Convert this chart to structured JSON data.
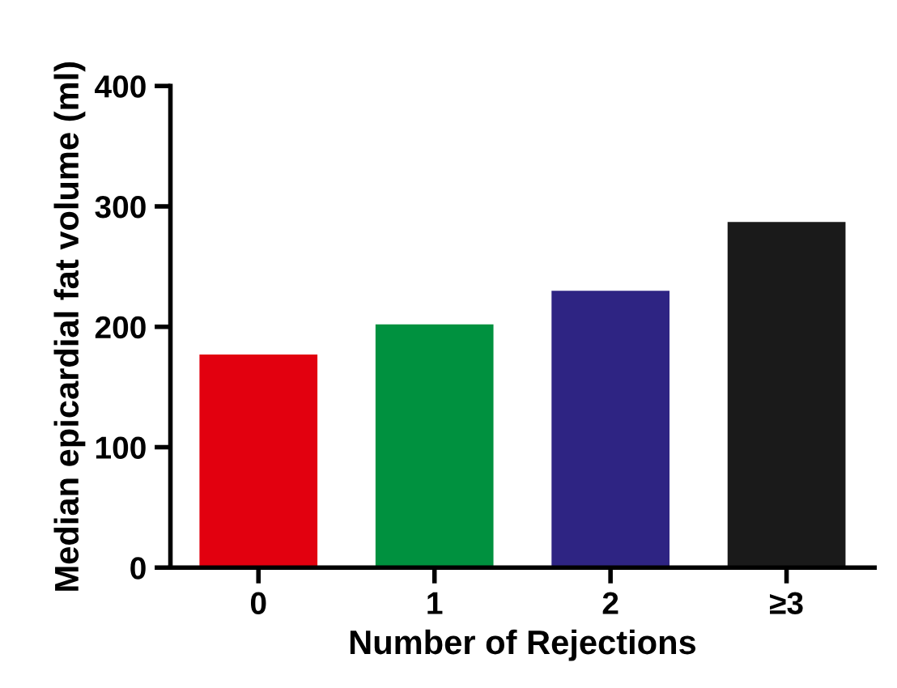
{
  "chart_data": {
    "type": "bar",
    "xlabel": "Number of Rejections",
    "ylabel": "Median epicardial fat volume (ml)",
    "categories": [
      "0",
      "1",
      "2",
      "≥3"
    ],
    "values": [
      177,
      202,
      230,
      287
    ],
    "colors": [
      "#e2000f",
      "#00913f",
      "#2e2483",
      "#1a1a1a"
    ],
    "ylim": [
      0,
      400
    ],
    "yticks": [
      0,
      100,
      200,
      300,
      400
    ],
    "grid": false,
    "legend": false
  }
}
